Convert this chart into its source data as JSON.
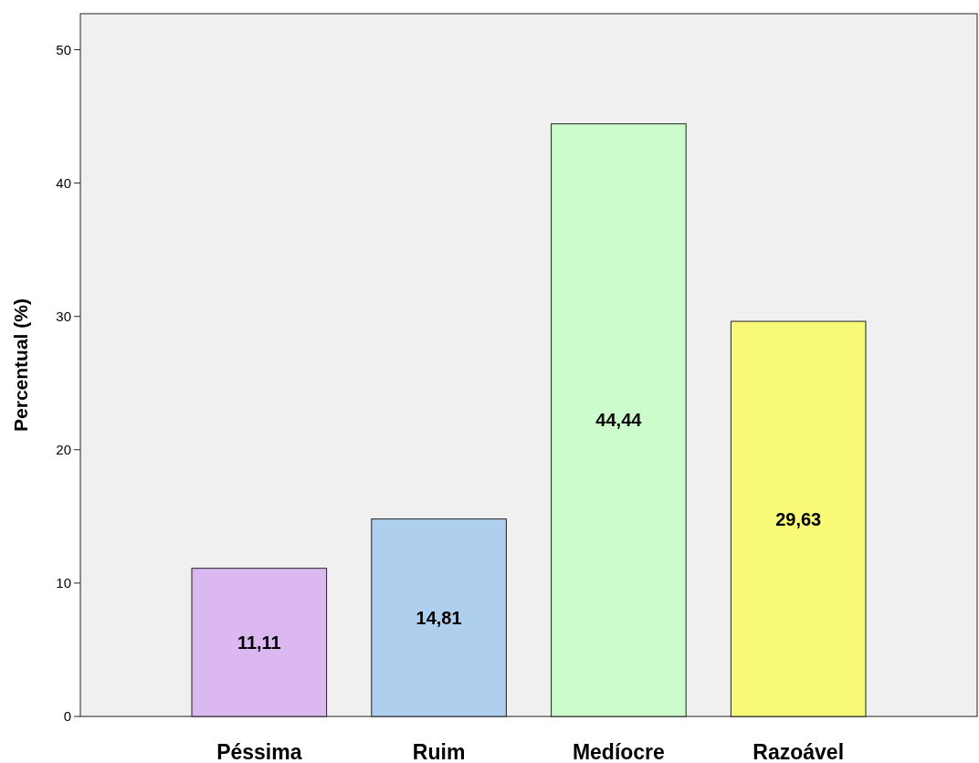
{
  "chart_data": {
    "type": "bar",
    "ylabel": "Percentual (%)",
    "categories": [
      "Péssima",
      "Ruim",
      "Medíocre",
      "Razoável"
    ],
    "values": [
      11.11,
      14.81,
      44.44,
      29.63
    ],
    "colors": [
      "#dcb8f0",
      "#aecfee",
      "#ccfccc",
      "#f9f978"
    ],
    "value_labels": [
      "11,11",
      "14,81",
      "44,44",
      "29,63"
    ],
    "ylim": [
      0,
      52.7
    ],
    "yticks": [
      0,
      10,
      20,
      30,
      40,
      50
    ],
    "grid": false
  }
}
